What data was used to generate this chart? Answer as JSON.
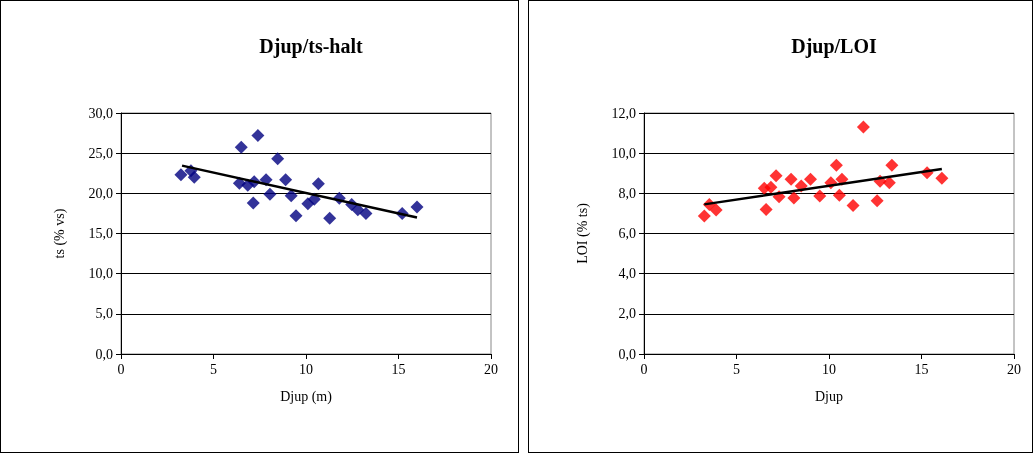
{
  "chart_data": [
    {
      "type": "scatter",
      "title": "Djup/ts-halt",
      "xlabel": "Djup (m)",
      "ylabel": "ts (% vs)",
      "xlim": [
        0,
        20
      ],
      "xticks": [
        0,
        5,
        10,
        15,
        20
      ],
      "ylim": [
        0,
        30
      ],
      "yticks": [
        {
          "value": 0,
          "label": "0,0"
        },
        {
          "value": 5,
          "label": "5,0"
        },
        {
          "value": 10,
          "label": "10,0"
        },
        {
          "value": 15,
          "label": "15,0"
        },
        {
          "value": 20,
          "label": "20,0"
        },
        {
          "value": 25,
          "label": "25,0"
        },
        {
          "value": 30,
          "label": "30,0"
        }
      ],
      "grid": "y",
      "marker": "diamond",
      "series": [
        {
          "color": "#000080",
          "x": [
            3.24,
            3.78,
            3.96,
            6.5,
            6.4,
            6.85,
            7.2,
            7.15,
            7.4,
            7.84,
            8.05,
            8.47,
            8.9,
            9.2,
            9.46,
            10.1,
            10.45,
            10.67,
            11.28,
            11.8,
            12.47,
            12.8,
            13.24,
            15.2,
            16.0
          ],
          "values": [
            22.3,
            22.8,
            22.0,
            25.75,
            21.25,
            21.0,
            21.45,
            18.8,
            27.2,
            21.7,
            19.9,
            24.3,
            21.7,
            19.7,
            17.2,
            18.7,
            19.25,
            21.2,
            16.9,
            19.4,
            18.6,
            17.95,
            17.5,
            17.5,
            18.3
          ]
        },
        {
          "type": "line",
          "color": "#000000",
          "marker": "none",
          "x": [
            3.3,
            16.0
          ],
          "values": [
            23.45,
            17.0
          ]
        }
      ]
    },
    {
      "type": "scatter",
      "title": "Djup/LOI",
      "xlabel": "Djup",
      "ylabel": "LOI (% ts)",
      "xlim": [
        0,
        20
      ],
      "xticks": [
        0,
        5,
        10,
        15,
        20
      ],
      "ylim": [
        0,
        12
      ],
      "yticks": [
        {
          "value": 0,
          "label": "0,0"
        },
        {
          "value": 2,
          "label": "2,0"
        },
        {
          "value": 4,
          "label": "4,0"
        },
        {
          "value": 6,
          "label": "6,0"
        },
        {
          "value": 8,
          "label": "8,0"
        },
        {
          "value": 10,
          "label": "10,0"
        },
        {
          "value": 12,
          "label": "12,0"
        }
      ],
      "grid": "y",
      "marker": "diamond",
      "series": [
        {
          "color": "#ff0000",
          "x": [
            3.26,
            3.53,
            3.9,
            6.5,
            6.86,
            6.6,
            7.14,
            7.3,
            7.95,
            8.1,
            8.5,
            9.0,
            9.5,
            10.1,
            10.4,
            10.56,
            10.7,
            11.3,
            11.86,
            12.6,
            12.76,
            13.26,
            13.4,
            15.3,
            16.1
          ],
          "values": [
            6.87,
            7.45,
            7.17,
            8.25,
            8.3,
            7.2,
            8.87,
            7.83,
            8.7,
            7.77,
            8.37,
            8.7,
            7.87,
            8.53,
            9.4,
            7.9,
            8.7,
            7.4,
            11.3,
            7.63,
            8.6,
            8.53,
            9.4,
            9.03,
            8.75
          ]
        },
        {
          "type": "line",
          "color": "#000000",
          "marker": "none",
          "x": [
            3.26,
            16.1
          ],
          "values": [
            7.45,
            9.21
          ]
        }
      ]
    }
  ]
}
